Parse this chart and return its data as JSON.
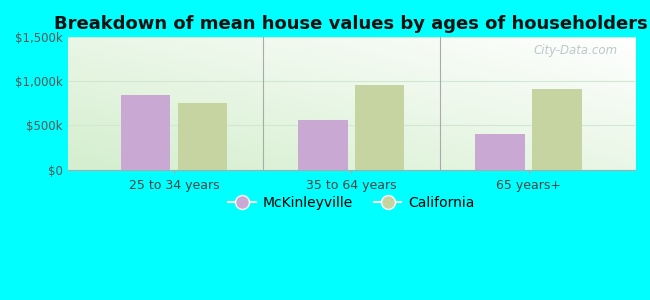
{
  "title": "Breakdown of mean house values by ages of householders",
  "categories": [
    "25 to 34 years",
    "35 to 64 years",
    "65 years+"
  ],
  "mckinleyville_values": [
    850000,
    560000,
    400000
  ],
  "california_values": [
    760000,
    960000,
    910000
  ],
  "ylim": [
    0,
    1500000
  ],
  "yticks": [
    0,
    500000,
    1000000,
    1500000
  ],
  "ytick_labels": [
    "$0",
    "$500k",
    "$1,000k",
    "$1,500k"
  ],
  "bar_color_mckinleyville": "#c9a8d4",
  "bar_color_california": "#c5d4a0",
  "background_outer": "#00FFFF",
  "title_fontsize": 13,
  "legend_label_mckinleyville": "McKinleyville",
  "legend_label_california": "California",
  "bar_width": 0.28,
  "bar_gap": 0.04,
  "watermark": "City-Data.com",
  "gradient_top": "#ffffff",
  "gradient_bottom": "#d4eece",
  "separator_color": "#aaaaaa",
  "grid_color": "#d0e8d0",
  "tick_label_color": "#555555",
  "x_tick_label_color": "#444444"
}
